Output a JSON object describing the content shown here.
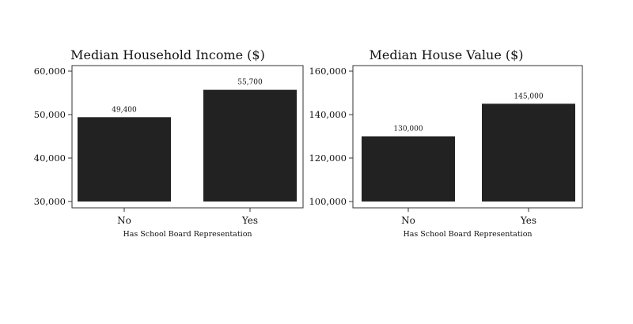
{
  "chart_data": [
    {
      "type": "bar",
      "title": "Median Household Income ($)",
      "xlabel": "Has School Board Representation",
      "ylabel": "",
      "categories": [
        "No",
        "Yes"
      ],
      "values": [
        49400,
        55700
      ],
      "value_labels": [
        "49,400",
        "55,700"
      ],
      "ylim": [
        30000,
        60000
      ],
      "yticks": [
        30000,
        40000,
        50000,
        60000
      ],
      "ytick_labels": [
        "30,000",
        "40,000",
        "50,000",
        "60,000"
      ],
      "grid": false,
      "bar_color": "#222222"
    },
    {
      "type": "bar",
      "title": "Median House Value ($)",
      "xlabel": "Has School Board Representation",
      "ylabel": "",
      "categories": [
        "No",
        "Yes"
      ],
      "values": [
        130000,
        145000
      ],
      "value_labels": [
        "130,000",
        "145,000"
      ],
      "ylim": [
        100000,
        160000
      ],
      "yticks": [
        100000,
        120000,
        140000,
        160000
      ],
      "ytick_labels": [
        "100,000",
        "120,000",
        "140,000",
        "160,000"
      ],
      "grid": false,
      "bar_color": "#222222"
    }
  ]
}
